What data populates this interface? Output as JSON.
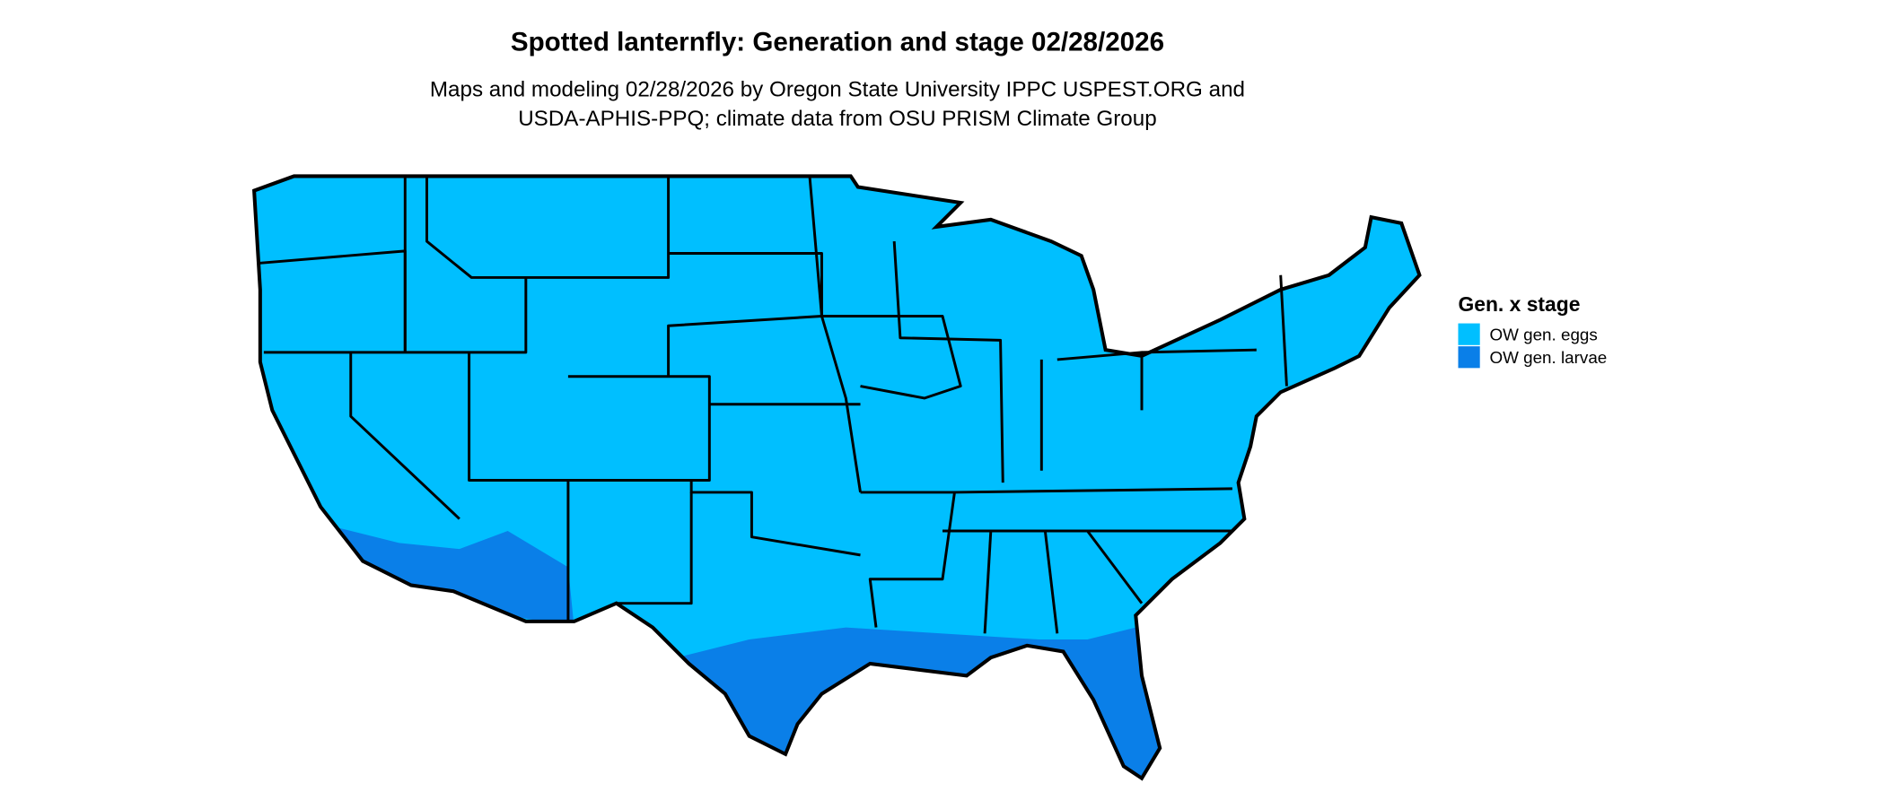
{
  "title": "Spotted lanternfly: Generation and stage 02/28/2026",
  "subtitle": [
    "Maps and modeling 02/28/2026 by Oregon State University IPPC USPEST.ORG and",
    "USDA-APHIS-PPQ; climate data from OSU PRISM Climate Group"
  ],
  "legend": {
    "title": "Gen. x stage",
    "items": [
      {
        "label": "OW gen. eggs",
        "color": "#00bfff"
      },
      {
        "label": "OW gen. larvae",
        "color": "#0a7fe8"
      }
    ]
  }
}
